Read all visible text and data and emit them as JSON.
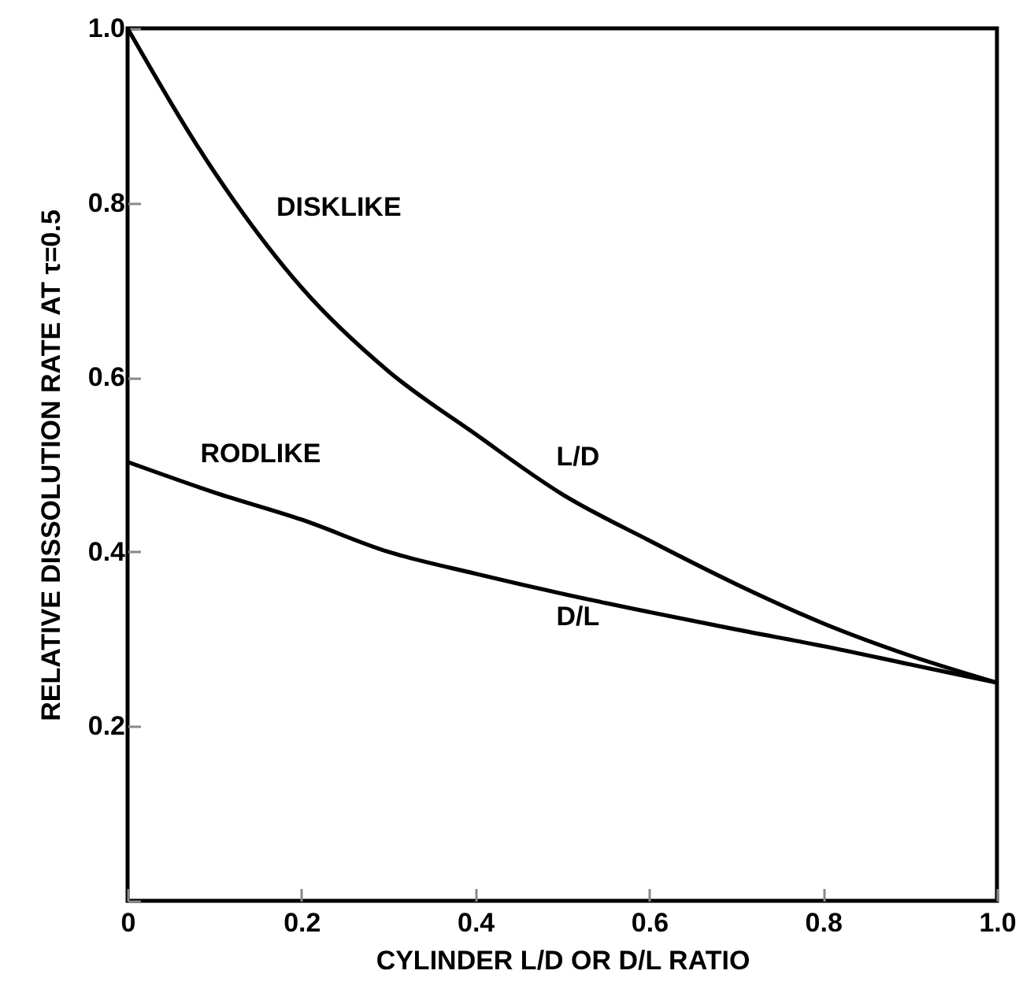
{
  "chart_data": {
    "type": "line",
    "xlabel": "CYLINDER L/D OR D/L RATIO",
    "ylabel": "RELATIVE DISSOLUTION RATE AT τ=0.5",
    "xlim": [
      0,
      1
    ],
    "ylim": [
      0,
      1
    ],
    "xticks": [
      0,
      0.2,
      0.4,
      0.6,
      0.8,
      {
        "value": 1,
        "label": "1.0"
      }
    ],
    "yticks": [
      {
        "value": 0,
        "label": null
      },
      0.2,
      0.4,
      0.6,
      0.8,
      {
        "value": 1,
        "label": "1.0"
      }
    ],
    "x": [
      0,
      0.1,
      0.2,
      0.3,
      0.4,
      0.5,
      0.6,
      0.7,
      0.8,
      0.9,
      1
    ],
    "series": [
      {
        "color": "#000000",
        "values": [
          1,
          0.835,
          0.703,
          0.607,
          0.535,
          0.466,
          0.413,
          0.363,
          0.318,
          0.281,
          0.25
        ]
      },
      {
        "color": "#000000",
        "values": [
          0.503,
          0.468,
          0.437,
          0.4,
          0.375,
          0.352,
          0.331,
          0.311,
          0.292,
          0.271,
          0.25
        ]
      }
    ],
    "annotations": [
      "DISKLIKE",
      "L/D",
      "RODLIKE",
      "D/L"
    ]
  }
}
